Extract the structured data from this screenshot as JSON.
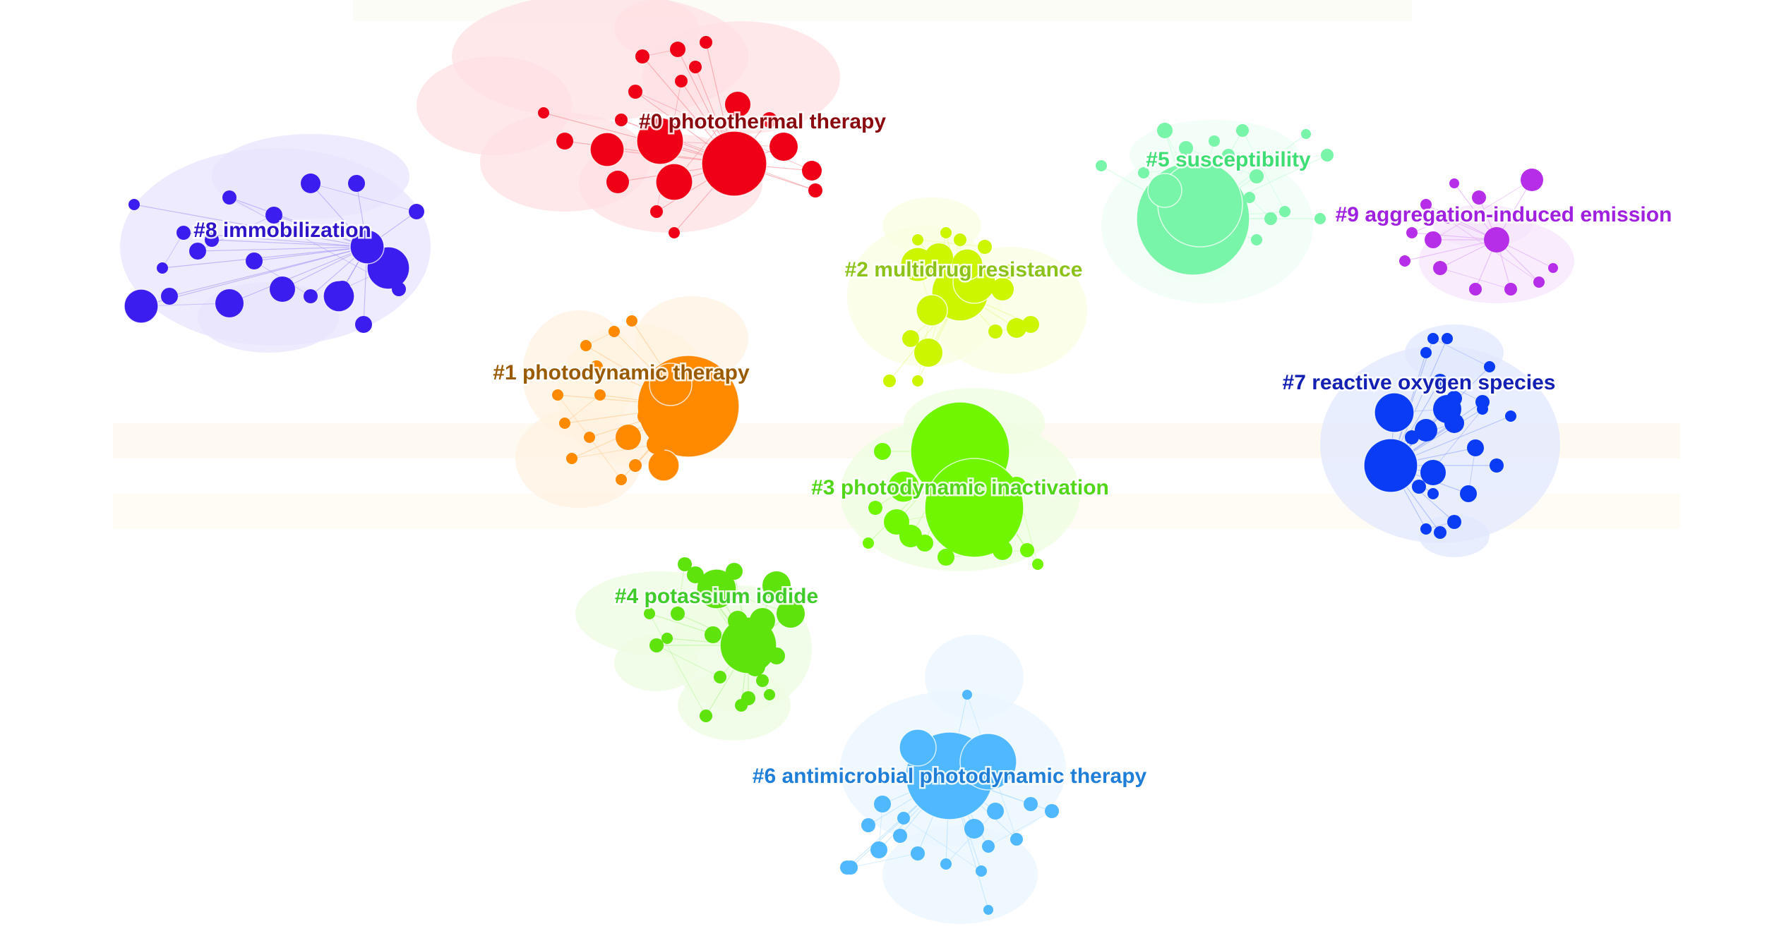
{
  "clusters": [
    {
      "id": 0,
      "label": "#0 photothermal therapy",
      "color": "#f00016",
      "label_color": "#8b0a10",
      "size": "large"
    },
    {
      "id": 1,
      "label": "#1 photodynamic therapy",
      "color": "#ff8a00",
      "label_color": "#9a5a00",
      "size": "large"
    },
    {
      "id": 2,
      "label": "#2 multidrug resistance",
      "color": "#ccf600",
      "label_color": "#8cc21a",
      "size": "large"
    },
    {
      "id": 3,
      "label": "#3 photodynamic inactivation",
      "color": "#6ff600",
      "label_color": "#52d61a",
      "size": "large"
    },
    {
      "id": 4,
      "label": "#4 potassium iodide",
      "color": "#5ee40c",
      "label_color": "#3fcc2a",
      "size": "medium"
    },
    {
      "id": 5,
      "label": "#5 susceptibility",
      "color": "#78f5a8",
      "label_color": "#3fde74",
      "size": "medium"
    },
    {
      "id": 6,
      "label": "#6 antimicrobial photodynamic therapy",
      "color": "#4fb8ff",
      "label_color": "#1f7ed8",
      "size": "medium"
    },
    {
      "id": 7,
      "label": "#7 reactive oxygen species",
      "color": "#0a3cf5",
      "label_color": "#1420b4",
      "size": "medium"
    },
    {
      "id": 8,
      "label": "#8 immobilization",
      "color": "#3c1df0",
      "label_color": "#2e14c8",
      "size": "medium"
    },
    {
      "id": 9,
      "label": "#9 aggregation-induced emission",
      "color": "#b62ee8",
      "label_color": "#a020e0",
      "size": "small"
    }
  ]
}
